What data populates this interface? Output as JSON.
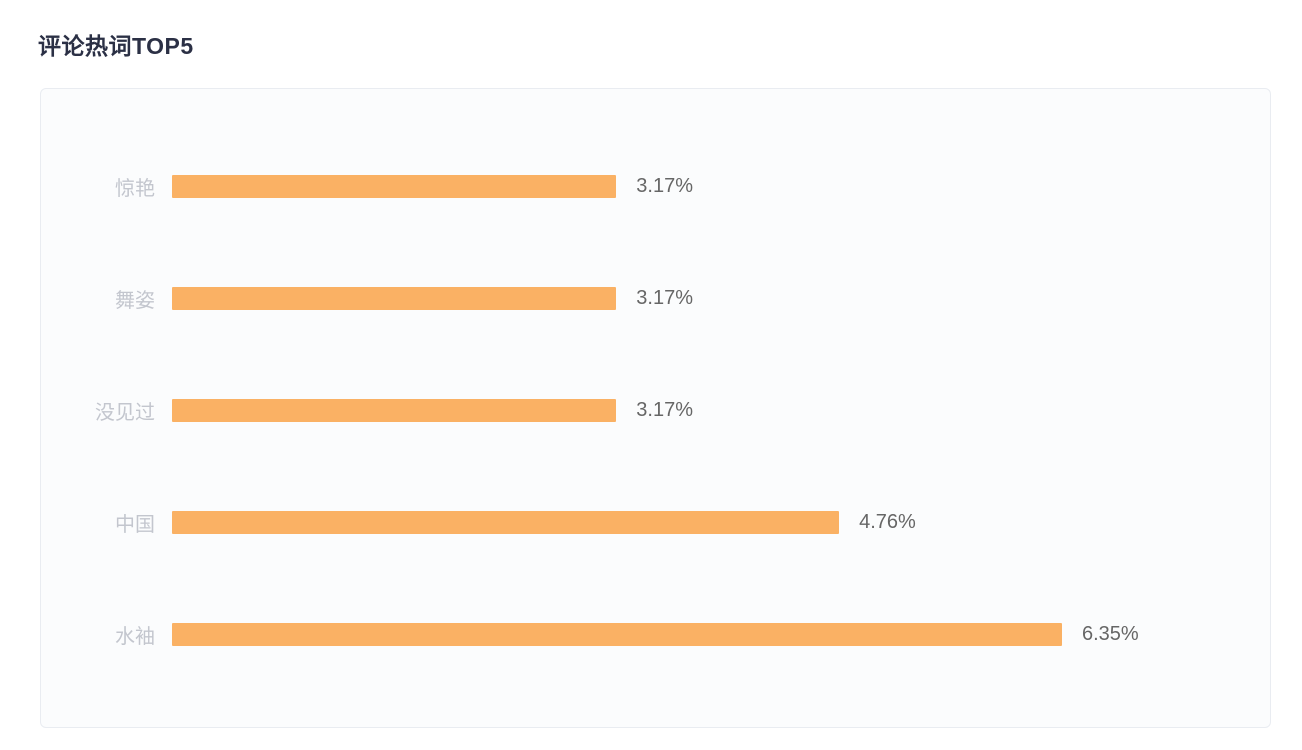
{
  "chart_data": {
    "type": "bar",
    "orientation": "horizontal",
    "title": "评论热词TOP5",
    "categories": [
      "惊艳",
      "舞姿",
      "没见过",
      "中国",
      "水袖"
    ],
    "values": [
      3.17,
      3.17,
      3.17,
      4.76,
      6.35
    ],
    "value_labels": [
      "3.17%",
      "3.17%",
      "3.17%",
      "4.76%",
      "6.35%"
    ],
    "xlabel": "",
    "ylabel": "",
    "xlim": [
      0,
      6.35
    ],
    "grid": false,
    "legend": false,
    "value_label_position": "right",
    "colors": {
      "bar": "#FAB164",
      "category_label": "#C3C6CE",
      "value_label": "#666666",
      "title": "#2B3045",
      "card_border": "#E9ECF1",
      "card_background": "#FBFCFD"
    }
  }
}
